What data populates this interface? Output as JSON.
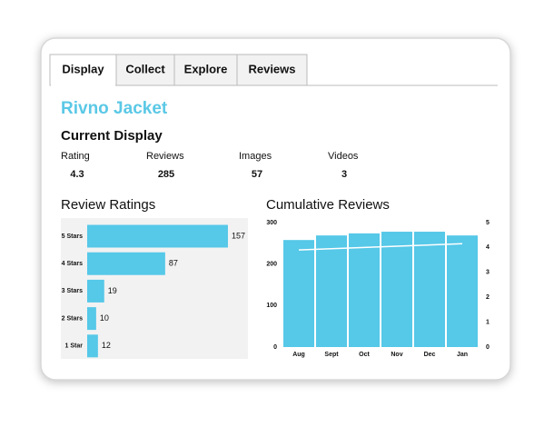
{
  "tabs": [
    "Display",
    "Collect",
    "Explore",
    "Reviews"
  ],
  "product_title": "Rivno Jacket",
  "section_title": "Current Display",
  "stats": [
    {
      "label": "Rating",
      "value": 4.3
    },
    {
      "label": "Reviews",
      "value": 285
    },
    {
      "label": "Images",
      "value": 57
    },
    {
      "label": "Videos",
      "value": 3
    }
  ],
  "review_ratings": {
    "type": "bar",
    "orientation": "horizontal",
    "title": "Review Ratings",
    "categories": [
      "5 Stars",
      "4 Stars",
      "3 Stars",
      "2 Stars",
      "1 Star"
    ],
    "values": [
      157,
      87,
      19,
      10,
      12
    ],
    "color": "#56c8e8"
  },
  "cumulative_reviews": {
    "type": "bar-line",
    "title": "Cumulative Reviews",
    "categories": [
      "Aug",
      "Sept",
      "Oct",
      "Nov",
      "Dec",
      "Jan"
    ],
    "series": [
      {
        "type": "bar",
        "color": "#56c8e8",
        "values": [
          258,
          269,
          274,
          278,
          278,
          269
        ]
      },
      {
        "type": "line",
        "axis": "y2",
        "color": "#ffffff",
        "values": [
          3.9,
          3.95,
          4.0,
          4.05,
          4.1,
          4.15
        ]
      }
    ],
    "ylim": [
      0,
      300
    ],
    "yticks": [
      0,
      100,
      200,
      300
    ],
    "y2lim": [
      0,
      5
    ],
    "y2ticks": [
      0,
      1,
      2,
      3,
      4,
      5
    ]
  }
}
